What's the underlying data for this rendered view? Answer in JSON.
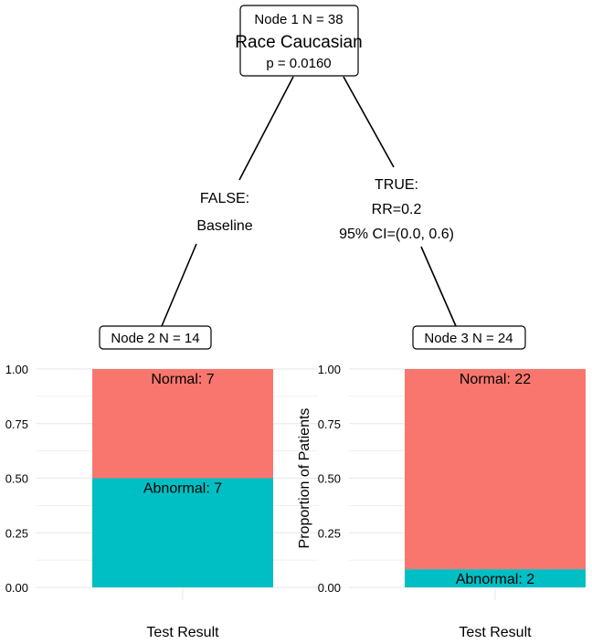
{
  "tree": {
    "root": {
      "label": "Node 1  N = 38",
      "variable": "Race Caucasian",
      "pvalue": "p = 0.0160"
    },
    "edges": [
      {
        "lines": [
          "FALSE:",
          "Baseline"
        ]
      },
      {
        "lines": [
          "TRUE:",
          "RR=0.2",
          "95% CI=(0.0, 0.6)"
        ]
      }
    ],
    "leaves": [
      {
        "label": "Node 2  N = 14"
      },
      {
        "label": "Node 3  N = 24"
      }
    ]
  },
  "colors": {
    "normal": "#F8766D",
    "abnormal": "#00BFC4",
    "grid": "#EBEBEB"
  },
  "chart_data": [
    {
      "type": "bar",
      "stacked": true,
      "categories": [
        ""
      ],
      "series": [
        {
          "name": "Abnormal",
          "values": [
            0.5
          ],
          "label": "Abnormal: 7"
        },
        {
          "name": "Normal",
          "values": [
            0.5
          ],
          "label": "Normal: 7"
        }
      ],
      "xlabel": "Test Result",
      "ylabel": "Proportion of Patients",
      "ylim": [
        0,
        1
      ],
      "yticks": [
        "0.00",
        "0.25",
        "0.50",
        "0.75",
        "1.00"
      ],
      "grid": true
    },
    {
      "type": "bar",
      "stacked": true,
      "categories": [
        ""
      ],
      "series": [
        {
          "name": "Abnormal",
          "values": [
            0.0833
          ],
          "label": "Abnormal: 2"
        },
        {
          "name": "Normal",
          "values": [
            0.9167
          ],
          "label": "Normal: 22"
        }
      ],
      "xlabel": "Test Result",
      "ylabel": "Proportion of Patients",
      "ylim": [
        0,
        1
      ],
      "yticks": [
        "0.00",
        "0.25",
        "0.50",
        "0.75",
        "1.00"
      ],
      "grid": true
    }
  ]
}
